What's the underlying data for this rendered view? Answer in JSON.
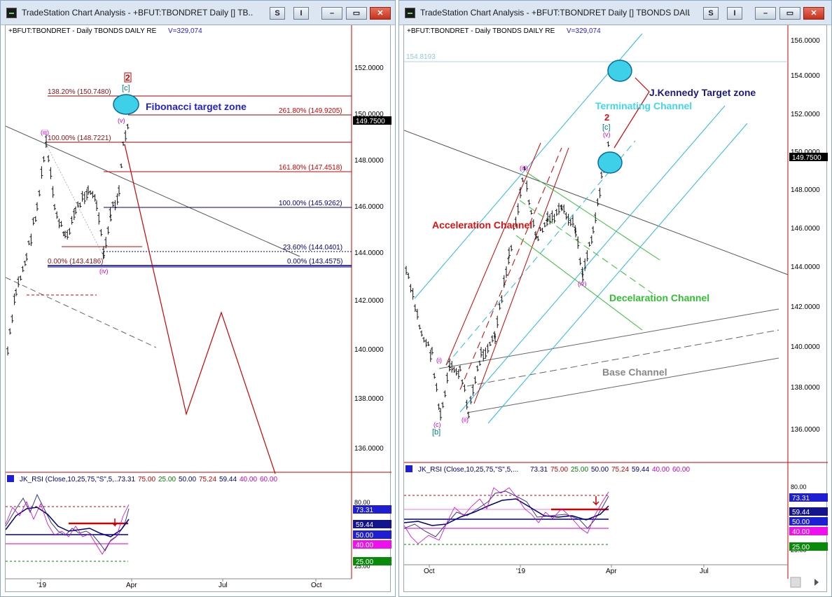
{
  "windows": [
    {
      "title": "TradeStation Chart Analysis - +BFUT:TBONDRET Daily [] TB...",
      "buttons": {
        "s": "S",
        "i": "I"
      },
      "header": "+BFUT:TBONDRET - Daily  TBONDS DAILY RE",
      "volume": "V=329,074",
      "price_ticks": [
        "152.0000",
        "150.0000",
        "148.0000",
        "146.0000",
        "144.0000",
        "142.0000",
        "140.0000",
        "138.0000",
        "136.0000"
      ],
      "last_price": "149.7500",
      "fib_labels": [
        "138.20% (150.7480)",
        "261.80% (149.9205)",
        "100.00% (148.7221)",
        "161.80% (147.4518)",
        "100.00% (145.9262)",
        "23.60% (144.0401)",
        "0.00% (143.4186)",
        "0.00% (143.4575)"
      ],
      "annotation": "Fibonacci target zone",
      "wave_labels": {
        "two": "2",
        "c": "[c]",
        "v": "(v)",
        "iii": "(iii)",
        "iv": "(iv)"
      },
      "rsi": {
        "name": "JK_RSI (Close,10,25,75,\"S\",5,...",
        "values": [
          "73.31",
          "75.00",
          "25.00",
          "50.00",
          "75.24",
          "59.44",
          "40.00",
          "60.00"
        ],
        "value_colors": [
          "#000080",
          "#cc0000",
          "#008000",
          "#000080",
          "#cc0000",
          "#000080",
          "#cc00cc",
          "#cc00cc"
        ],
        "axis": [
          "80.00",
          "25.00"
        ],
        "boxes": [
          {
            "text": "73.31",
            "bg": "#1e1ed2"
          },
          {
            "text": "59.44",
            "bg": "#14148c"
          },
          {
            "text": "50.00",
            "bg": "#1e1ed2"
          },
          {
            "text": "40.00",
            "bg": "#ee11ee"
          },
          {
            "text": "25.00",
            "bg": "#0a8a0a"
          }
        ]
      },
      "date_labels": [
        "'19",
        "Apr",
        "Jul",
        "Oct"
      ]
    },
    {
      "title": "TradeStation Chart Analysis - +BFUT:TBONDRET Daily [] TBONDS DAIL...",
      "buttons": {
        "s": "S",
        "i": "I"
      },
      "header": "+BFUT:TBONDRET - Daily  TBONDS DAILY RE",
      "volume": "V=329,074",
      "price_ticks": [
        "156.0000",
        "154.0000",
        "152.0000",
        "150.0000",
        "148.0000",
        "146.0000",
        "144.0000",
        "142.0000",
        "140.0000",
        "138.0000",
        "136.0000"
      ],
      "last_price": "149.7500",
      "level_label": "154.8193",
      "annotations": {
        "target": "J.Kennedy Target zone",
        "terminating": "Terminating Channel",
        "acceleration": "Acceleration Channel",
        "deceleration": "Decelaration Channel",
        "base": "Base Channel"
      },
      "wave_labels": {
        "two": "2",
        "c": "[c]",
        "v": "(v)",
        "iii": "(iii)",
        "iv": "(iv)",
        "i": "(i)",
        "ii": "(ii)",
        "cc": "(c)",
        "b": "[b]"
      },
      "rsi": {
        "name": "JK_RSI (Close,10,25,75,\"S\",5,...",
        "values": [
          "73.31",
          "75.00",
          "25.00",
          "50.00",
          "75.24",
          "59.44",
          "40.00",
          "60.00"
        ],
        "value_colors": [
          "#000080",
          "#cc0000",
          "#008000",
          "#000080",
          "#cc0000",
          "#000080",
          "#cc00cc",
          "#cc00cc"
        ],
        "axis": [
          "80.00",
          "25.00"
        ],
        "boxes": [
          {
            "text": "73.31",
            "bg": "#1e1ed2"
          },
          {
            "text": "59.44",
            "bg": "#14148c"
          },
          {
            "text": "50.00",
            "bg": "#1e1ed2"
          },
          {
            "text": "40.00",
            "bg": "#ee11ee"
          },
          {
            "text": "25.00",
            "bg": "#0a8a0a"
          }
        ]
      },
      "date_labels": [
        "Oct",
        "'19",
        "Apr",
        "Jul"
      ]
    }
  ]
}
